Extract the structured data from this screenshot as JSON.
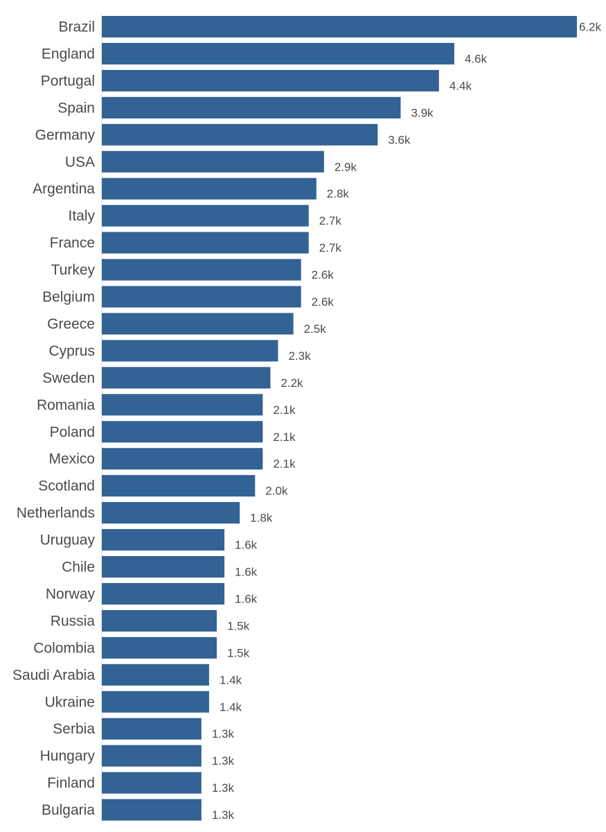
{
  "chart_data": {
    "type": "bar",
    "orientation": "horizontal",
    "title": "",
    "xlabel": "",
    "ylabel": "",
    "xlim": [
      0,
      6.2
    ],
    "grid": false,
    "legend": "none",
    "bar_color": "#336294",
    "categories": [
      "Brazil",
      "England",
      "Portugal",
      "Spain",
      "Germany",
      "USA",
      "Argentina",
      "Italy",
      "France",
      "Turkey",
      "Belgium",
      "Greece",
      "Cyprus",
      "Sweden",
      "Romania",
      "Poland",
      "Mexico",
      "Scotland",
      "Netherlands",
      "Uruguay",
      "Chile",
      "Norway",
      "Russia",
      "Colombia",
      "Saudi Arabia",
      "Ukraine",
      "Serbia",
      "Hungary",
      "Finland",
      "Bulgaria"
    ],
    "values": [
      6.2,
      4.6,
      4.4,
      3.9,
      3.6,
      2.9,
      2.8,
      2.7,
      2.7,
      2.6,
      2.6,
      2.5,
      2.3,
      2.2,
      2.1,
      2.1,
      2.1,
      2.0,
      1.8,
      1.6,
      1.6,
      1.6,
      1.5,
      1.5,
      1.4,
      1.4,
      1.3,
      1.3,
      1.3,
      1.3
    ],
    "value_labels": [
      "6.2k",
      "4.6k",
      "4.4k",
      "3.9k",
      "3.6k",
      "2.9k",
      "2.8k",
      "2.7k",
      "2.7k",
      "2.6k",
      "2.6k",
      "2.5k",
      "2.3k",
      "2.2k",
      "2.1k",
      "2.1k",
      "2.1k",
      "2.0k",
      "1.8k",
      "1.6k",
      "1.6k",
      "1.6k",
      "1.5k",
      "1.5k",
      "1.4k",
      "1.4k",
      "1.3k",
      "1.3k",
      "1.3k",
      "1.3k"
    ]
  }
}
